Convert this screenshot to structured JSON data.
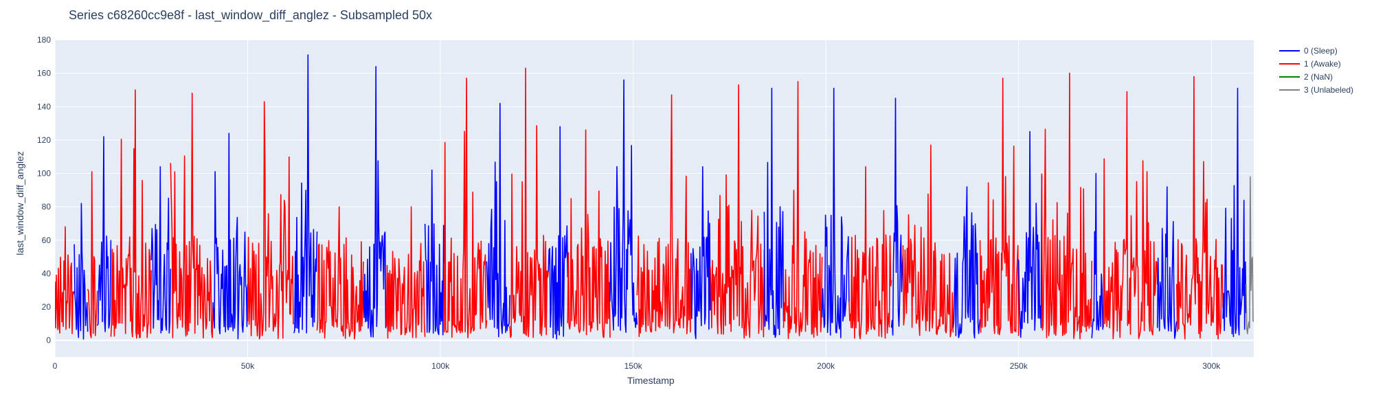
{
  "chart_data": {
    "type": "line",
    "title": "Series c68260cc9e8f - last_window_diff_anglez - Subsampled 50x",
    "xlabel": "Timestamp",
    "ylabel": "last_window_diff_anglez",
    "xlim": [
      0,
      311000
    ],
    "ylim": [
      -10,
      180
    ],
    "x_ticks": [
      0,
      50000,
      100000,
      150000,
      200000,
      250000,
      300000
    ],
    "x_tick_labels": [
      "0",
      "50k",
      "100k",
      "150k",
      "200k",
      "250k",
      "300k"
    ],
    "y_ticks": [
      0,
      20,
      40,
      60,
      80,
      100,
      120,
      140,
      160,
      180
    ],
    "y_tick_labels": [
      "0",
      "20",
      "40",
      "60",
      "80",
      "100",
      "120",
      "140",
      "160",
      "180"
    ],
    "grid": true,
    "legend_position": "top-right",
    "background": "#e5ecf6",
    "series": [
      {
        "name": "0 (Sleep)",
        "color": "#0000ff"
      },
      {
        "name": "1 (Awake)",
        "color": "#ff0000"
      },
      {
        "name": "2 (NaN)",
        "color": "#008000"
      },
      {
        "name": "3 (Unlabeled)",
        "color": "#808080"
      }
    ],
    "segments": [
      {
        "label": 1,
        "x0": 0,
        "x1": 5000,
        "typical": 30,
        "peak": 68
      },
      {
        "label": 0,
        "x0": 5000,
        "x1": 8500,
        "typical": 35,
        "peak": 82
      },
      {
        "label": 1,
        "x0": 8500,
        "x1": 11000,
        "typical": 30,
        "peak": 101
      },
      {
        "label": 0,
        "x0": 11000,
        "x1": 14500,
        "typical": 35,
        "peak": 122
      },
      {
        "label": 1,
        "x0": 14500,
        "x1": 25000,
        "typical": 35,
        "peak": 150
      },
      {
        "label": 0,
        "x0": 25000,
        "x1": 30000,
        "typical": 40,
        "peak": 104
      },
      {
        "label": 1,
        "x0": 30000,
        "x1": 41000,
        "typical": 35,
        "peak": 148
      },
      {
        "label": 0,
        "x0": 41000,
        "x1": 50000,
        "typical": 40,
        "peak": 124
      },
      {
        "label": 1,
        "x0": 50000,
        "x1": 62000,
        "typical": 35,
        "peak": 143
      },
      {
        "label": 0,
        "x0": 62000,
        "x1": 68000,
        "typical": 45,
        "peak": 171
      },
      {
        "label": 1,
        "x0": 68000,
        "x1": 80000,
        "typical": 35,
        "peak": 80
      },
      {
        "label": 0,
        "x0": 80000,
        "x1": 86000,
        "typical": 45,
        "peak": 164
      },
      {
        "label": 1,
        "x0": 86000,
        "x1": 96000,
        "typical": 30,
        "peak": 80
      },
      {
        "label": 0,
        "x0": 96000,
        "x1": 101000,
        "typical": 40,
        "peak": 102
      },
      {
        "label": 1,
        "x0": 101000,
        "x1": 112000,
        "typical": 35,
        "peak": 157
      },
      {
        "label": 0,
        "x0": 112000,
        "x1": 118000,
        "typical": 40,
        "peak": 142
      },
      {
        "label": 1,
        "x0": 118000,
        "x1": 128000,
        "typical": 35,
        "peak": 163
      },
      {
        "label": 0,
        "x0": 128000,
        "x1": 133000,
        "typical": 40,
        "peak": 128
      },
      {
        "label": 1,
        "x0": 133000,
        "x1": 144000,
        "typical": 35,
        "peak": 126
      },
      {
        "label": 0,
        "x0": 144000,
        "x1": 151000,
        "typical": 45,
        "peak": 156
      },
      {
        "label": 1,
        "x0": 151000,
        "x1": 165000,
        "typical": 35,
        "peak": 147
      },
      {
        "label": 0,
        "x0": 165000,
        "x1": 170000,
        "typical": 40,
        "peak": 104
      },
      {
        "label": 1,
        "x0": 170000,
        "x1": 184000,
        "typical": 35,
        "peak": 153
      },
      {
        "label": 0,
        "x0": 184000,
        "x1": 189000,
        "typical": 45,
        "peak": 151
      },
      {
        "label": 1,
        "x0": 189000,
        "x1": 199000,
        "typical": 35,
        "peak": 155
      },
      {
        "label": 0,
        "x0": 199000,
        "x1": 206000,
        "typical": 45,
        "peak": 151
      },
      {
        "label": 1,
        "x0": 206000,
        "x1": 217000,
        "typical": 35,
        "peak": 104
      },
      {
        "label": 0,
        "x0": 217000,
        "x1": 220000,
        "typical": 40,
        "peak": 145
      },
      {
        "label": 1,
        "x0": 220000,
        "x1": 233000,
        "typical": 35,
        "peak": 117
      },
      {
        "label": 0,
        "x0": 233000,
        "x1": 240000,
        "typical": 40,
        "peak": 92
      },
      {
        "label": 1,
        "x0": 240000,
        "x1": 250000,
        "typical": 35,
        "peak": 157
      },
      {
        "label": 0,
        "x0": 250000,
        "x1": 256000,
        "typical": 40,
        "peak": 125
      },
      {
        "label": 1,
        "x0": 256000,
        "x1": 269000,
        "typical": 35,
        "peak": 160
      },
      {
        "label": 0,
        "x0": 269000,
        "x1": 272000,
        "typical": 40,
        "peak": 100
      },
      {
        "label": 1,
        "x0": 272000,
        "x1": 286000,
        "typical": 35,
        "peak": 149
      },
      {
        "label": 0,
        "x0": 286000,
        "x1": 291000,
        "typical": 40,
        "peak": 92
      },
      {
        "label": 1,
        "x0": 291000,
        "x1": 303000,
        "typical": 35,
        "peak": 158
      },
      {
        "label": 0,
        "x0": 303000,
        "x1": 309000,
        "typical": 30,
        "peak": 151
      },
      {
        "label": 3,
        "x0": 309000,
        "x1": 311000,
        "typical": 45,
        "peak": 98
      }
    ]
  }
}
